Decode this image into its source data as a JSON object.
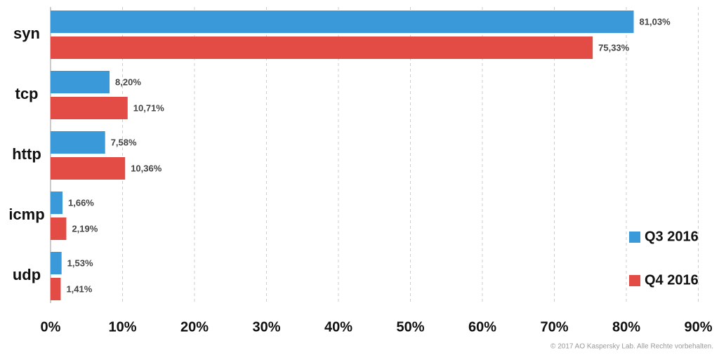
{
  "chart_data": {
    "type": "hbar",
    "categories": [
      "syn",
      "tcp",
      "http",
      "icmp",
      "udp"
    ],
    "series": [
      {
        "name": "Q3 2016",
        "color": "#3a9ad9",
        "values": [
          81.03,
          8.2,
          7.58,
          1.66,
          1.53
        ],
        "value_labels": [
          "81,03%",
          "8,20%",
          "7,58%",
          "1,66%",
          "1,53%"
        ]
      },
      {
        "name": "Q4 2016",
        "color": "#e34c44",
        "values": [
          75.33,
          10.71,
          10.36,
          2.19,
          1.41
        ],
        "value_labels": [
          "75,33%",
          "10,71%",
          "10,36%",
          "2,19%",
          "1,41%"
        ]
      }
    ],
    "xlim": [
      0,
      90
    ],
    "xticks": [
      {
        "value": 0,
        "label": "0%"
      },
      {
        "value": 10,
        "label": "10%"
      },
      {
        "value": 20,
        "label": "20%"
      },
      {
        "value": 30,
        "label": "30%"
      },
      {
        "value": 40,
        "label": "40%"
      },
      {
        "value": 50,
        "label": "50%"
      },
      {
        "value": 60,
        "label": "60%"
      },
      {
        "value": 70,
        "label": "70%"
      },
      {
        "value": 80,
        "label": "80%"
      },
      {
        "value": 90,
        "label": "90%"
      }
    ],
    "grid": true,
    "legend": "lower right",
    "source": "© 2017 AO Kaspersky Lab. Alle Rechte vorbehalten."
  }
}
